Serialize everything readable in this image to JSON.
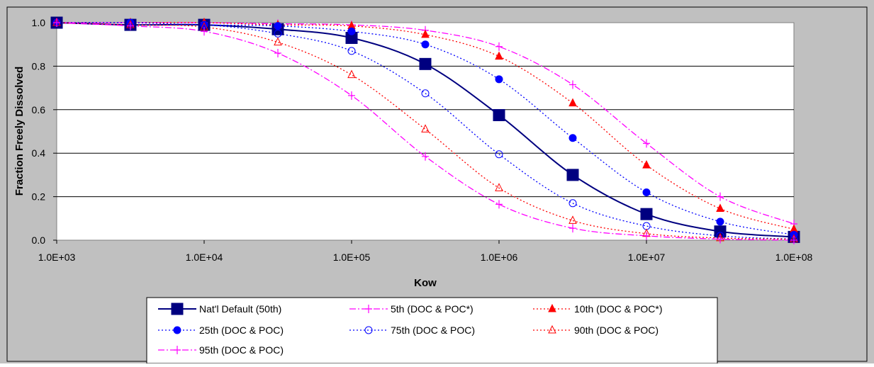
{
  "chart_data": {
    "type": "line",
    "title": "",
    "xlabel": "Kow",
    "ylabel": "Fraction Freely Dissolved",
    "xscale": "log",
    "xlim": [
      1000,
      100000000
    ],
    "ylim": [
      0,
      1
    ],
    "x_ticks": [
      1000,
      10000,
      100000,
      1000000,
      10000000,
      100000000
    ],
    "x_tick_labels": [
      "1.0E+03",
      "1.0E+04",
      "1.0E+05",
      "1.0E+06",
      "1.0E+07",
      "1.0E+08"
    ],
    "y_ticks": [
      0,
      0.2,
      0.4,
      0.6,
      0.8,
      1.0
    ],
    "y_tick_labels": [
      "0.0",
      "0.2",
      "0.4",
      "0.6",
      "0.8",
      "1.0"
    ],
    "grid": "horizontal",
    "legend_position": "bottom",
    "plot_background": "#ffffff",
    "outer_background": "#c0c0c0",
    "x_points": [
      1000,
      3162,
      10000,
      31623,
      100000,
      316228,
      1000000,
      3162278,
      10000000,
      31622777,
      100000000
    ],
    "series": [
      {
        "name": "Nat'l Default (50th)",
        "color": "#000080",
        "dash": "solid",
        "marker": "square",
        "values": [
          1.0,
          0.99,
          0.99,
          0.97,
          0.93,
          0.81,
          0.575,
          0.3,
          0.12,
          0.04,
          0.015
        ]
      },
      {
        "name": "5th (DOC & POC*)",
        "color": "#ff00ff",
        "dash": "dashdot",
        "marker": "plus",
        "values": [
          1.0,
          1.0,
          1.0,
          0.995,
          0.99,
          0.965,
          0.89,
          0.715,
          0.445,
          0.2,
          0.075
        ]
      },
      {
        "name": "10th (DOC & POC*)",
        "color": "#ff0000",
        "dash": "dotted",
        "marker": "filled-triangle",
        "values": [
          1.0,
          1.0,
          1.0,
          0.99,
          0.985,
          0.945,
          0.845,
          0.63,
          0.345,
          0.145,
          0.05
        ]
      },
      {
        "name": "25th (DOC & POC)",
        "color": "#0000ff",
        "dash": "dotted",
        "marker": "filled-circle",
        "values": [
          1.0,
          1.0,
          0.99,
          0.985,
          0.96,
          0.9,
          0.74,
          0.47,
          0.22,
          0.085,
          0.025
        ]
      },
      {
        "name": "75th (DOC & POC)",
        "color": "#0000ff",
        "dash": "dotted",
        "marker": "open-circle",
        "values": [
          1.0,
          0.99,
          0.99,
          0.95,
          0.87,
          0.675,
          0.395,
          0.17,
          0.065,
          0.02,
          0.005
        ]
      },
      {
        "name": "90th (DOC & POC)",
        "color": "#ff0000",
        "dash": "dotted",
        "marker": "open-triangle",
        "values": [
          1.0,
          0.99,
          0.98,
          0.91,
          0.76,
          0.51,
          0.24,
          0.09,
          0.03,
          0.01,
          0.005
        ]
      },
      {
        "name": "95th (DOC & POC)",
        "color": "#ff00ff",
        "dash": "dashdot",
        "marker": "plus",
        "values": [
          1.0,
          0.985,
          0.96,
          0.86,
          0.665,
          0.385,
          0.165,
          0.055,
          0.02,
          0.005,
          0.0
        ]
      }
    ]
  }
}
